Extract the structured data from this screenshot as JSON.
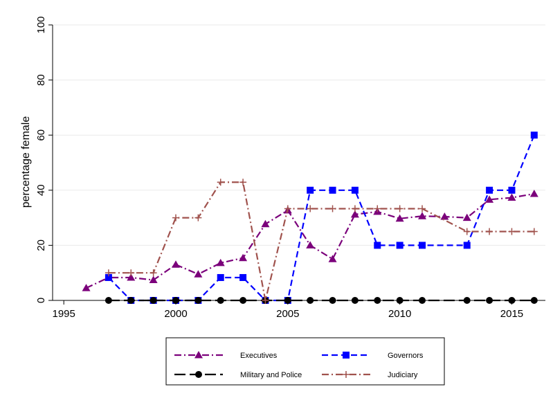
{
  "chart_data": {
    "type": "line",
    "title": "",
    "xlabel": "",
    "ylabel": "percentage female",
    "xlim": [
      1994.5,
      2016.5
    ],
    "ylim": [
      0,
      100
    ],
    "xticks": [
      1995,
      2000,
      2005,
      2010,
      2015
    ],
    "yticks": [
      0,
      20,
      40,
      60,
      80,
      100
    ],
    "grid": "horizontal",
    "legend_position": "bottom",
    "series": [
      {
        "name": "Executives",
        "color": "#7b007b",
        "dash": "dash-dot",
        "marker": "triangle",
        "x": [
          1996,
          1997,
          1998,
          1999,
          2000,
          2001,
          2002,
          2003,
          2004,
          2005,
          2006,
          2007,
          2008,
          2009,
          2010,
          2011,
          2012,
          2013,
          2014,
          2015,
          2016
        ],
        "y": [
          4.5,
          8.3,
          8.3,
          7.4,
          13,
          9.5,
          13.6,
          15.4,
          27.7,
          32.7,
          20,
          15,
          31.2,
          32.2,
          29.7,
          30.6,
          30.4,
          30,
          36.6,
          37.3,
          38.7
        ]
      },
      {
        "name": "Governors",
        "color": "#0000ff",
        "dash": "dash",
        "marker": "square",
        "x": [
          1997,
          1998,
          1999,
          2000,
          2001,
          2002,
          2003,
          2004,
          2005,
          2006,
          2007,
          2008,
          2009,
          2010,
          2011,
          2013,
          2014,
          2015,
          2016
        ],
        "y": [
          8.3,
          0,
          0,
          0,
          0,
          8.3,
          8.3,
          0,
          0,
          40,
          40,
          40,
          20,
          20,
          20,
          20,
          40,
          40,
          60
        ]
      },
      {
        "name": "Military and Police",
        "color": "#000000",
        "dash": "longdash",
        "marker": "circle",
        "x": [
          1997,
          1998,
          1999,
          2000,
          2001,
          2002,
          2003,
          2004,
          2005,
          2006,
          2007,
          2008,
          2009,
          2010,
          2011,
          2013,
          2014,
          2015,
          2016
        ],
        "y": [
          0,
          0,
          0,
          0,
          0,
          0,
          0,
          0,
          0,
          0,
          0,
          0,
          0,
          0,
          0,
          0,
          0,
          0,
          0
        ]
      },
      {
        "name": "Judiciary",
        "color": "#a0524d",
        "dash": "dash-dot",
        "marker": "plus",
        "x": [
          1997,
          1998,
          1999,
          2000,
          2001,
          2002,
          2003,
          2004,
          2005,
          2006,
          2007,
          2008,
          2009,
          2010,
          2011,
          2013,
          2014,
          2015,
          2016
        ],
        "y": [
          10,
          10,
          10,
          30,
          30,
          42.9,
          42.9,
          0,
          33.3,
          33.3,
          33.3,
          33.3,
          33.3,
          33.3,
          33.3,
          25,
          25,
          25,
          25
        ]
      }
    ],
    "legend_order": [
      "Executives",
      "Governors",
      "Military and Police",
      "Judiciary"
    ]
  }
}
